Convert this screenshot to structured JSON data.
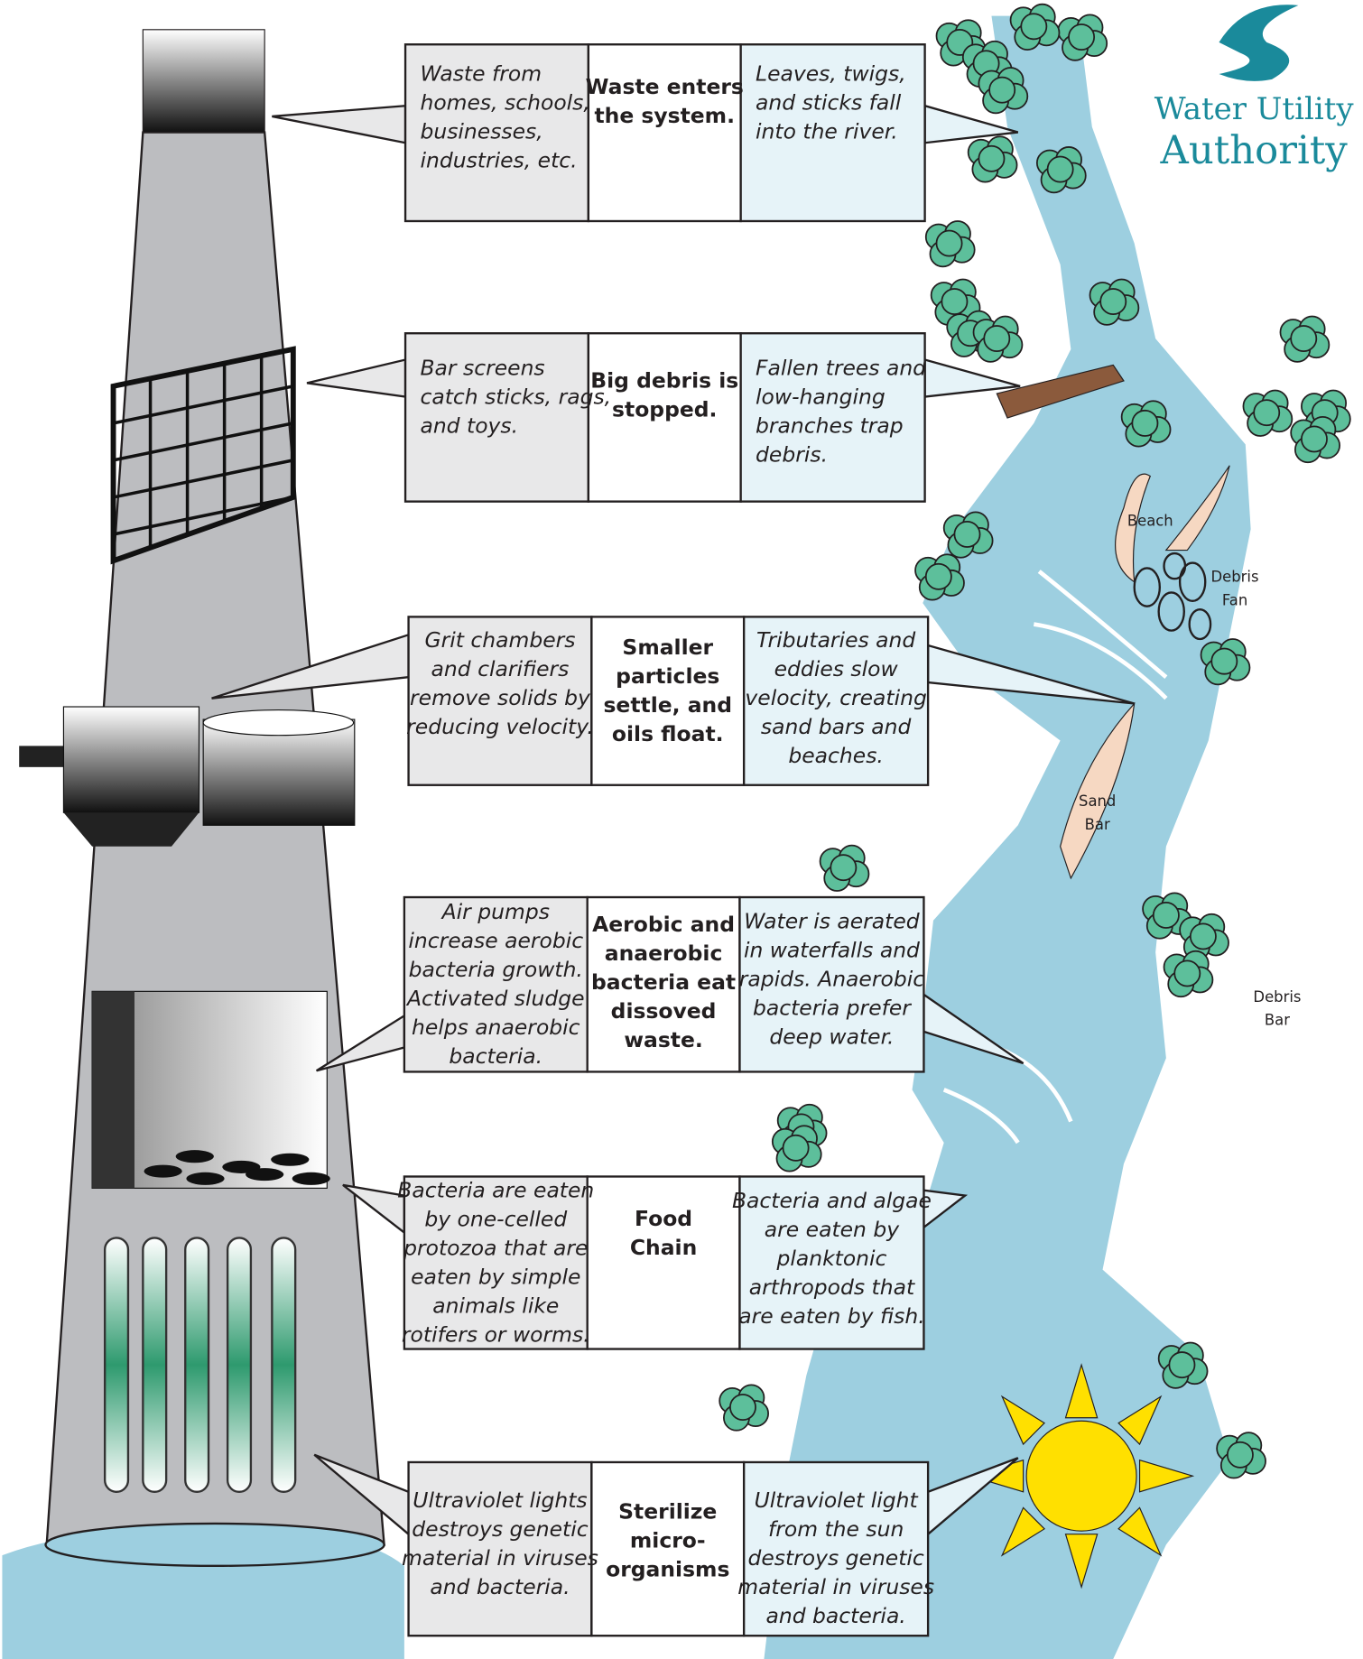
{
  "logo": {
    "line1": "Water Utility",
    "line2": "Authority"
  },
  "rows": [
    {
      "left": [
        "Waste from",
        "homes, schools,",
        "businesses,",
        "industries, etc."
      ],
      "center": [
        "Waste enters",
        "the system."
      ],
      "right": [
        "Leaves, twigs,",
        "and sticks fall",
        "into the river."
      ]
    },
    {
      "left": [
        "Bar screens",
        "catch sticks, rags,",
        "and toys."
      ],
      "center": [
        "Big debris is",
        "stopped."
      ],
      "right": [
        "Fallen trees and",
        "low-hanging",
        "branches trap",
        "debris."
      ]
    },
    {
      "left": [
        "Grit chambers",
        "and clarifiers",
        "remove solids by",
        "reducing velocity."
      ],
      "center": [
        "Smaller",
        "particles",
        "settle, and",
        "oils float."
      ],
      "right": [
        "Tributaries and",
        "eddies slow",
        "velocity, creating",
        "sand bars and",
        "beaches."
      ]
    },
    {
      "left": [
        "Air pumps",
        "increase aerobic",
        "bacteria growth.",
        "Activated sludge",
        "helps anaerobic",
        "bacteria."
      ],
      "center": [
        "Aerobic and",
        "anaerobic",
        "bacteria eat",
        "dissoved",
        "waste."
      ],
      "right": [
        "Water is aerated",
        "in waterfalls and",
        "rapids. Anaerobic",
        "bacteria prefer",
        "deep water."
      ]
    },
    {
      "left": [
        "Bacteria are eaten",
        "by one-celled",
        "protozoa that are",
        "eaten by simple",
        "animals like",
        "rotifers or worms."
      ],
      "center": [
        "Food",
        "Chain"
      ],
      "right": [
        "Bacteria and algae",
        "are eaten by",
        "planktonic",
        "arthropods that",
        "are eaten by fish."
      ]
    },
    {
      "left": [
        "Ultraviolet lights",
        "destroys genetic",
        "material in viruses",
        "and bacteria."
      ],
      "center": [
        "Sterilize",
        "micro-",
        "organisms"
      ],
      "right": [
        "Ultraviolet light",
        "from the sun",
        "destroys genetic",
        "material in viruses",
        "and bacteria."
      ]
    }
  ],
  "river_labels": [
    {
      "lines": [
        "Beach"
      ]
    },
    {
      "lines": [
        "Debris",
        "Fan"
      ]
    },
    {
      "lines": [
        "Sand",
        "Bar"
      ]
    },
    {
      "lines": [
        "Debris",
        "Bar"
      ]
    }
  ]
}
